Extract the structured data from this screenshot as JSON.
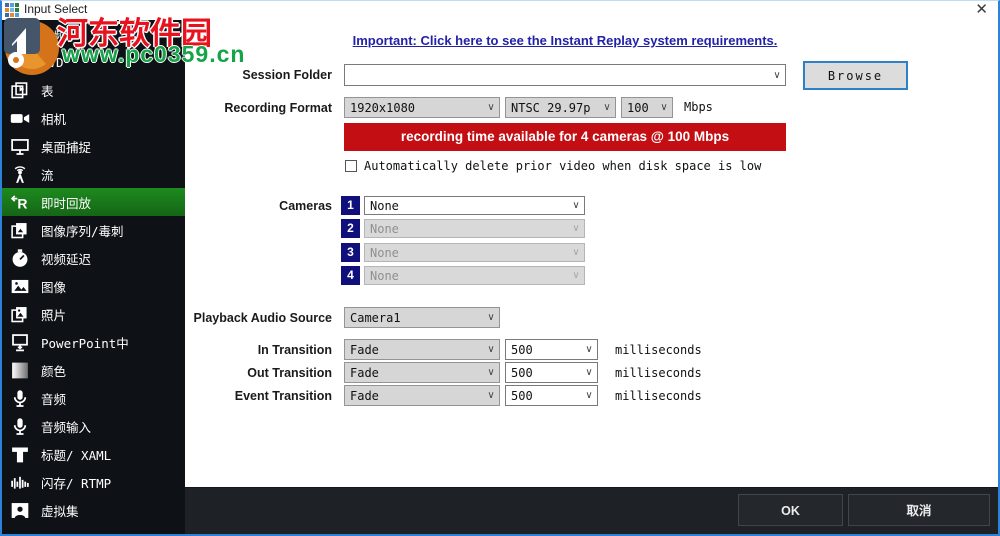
{
  "window": {
    "title": "Input Select",
    "close_icon": "✕"
  },
  "watermark": {
    "line1": "河东软件园",
    "line2": "www.pc0359.cn"
  },
  "sidebar": {
    "items": [
      {
        "label": "视频",
        "icon": "film",
        "selected": false
      },
      {
        "label": "DVD",
        "icon": "dvd",
        "selected": false
      },
      {
        "label": "表",
        "icon": "list",
        "selected": false
      },
      {
        "label": "相机",
        "icon": "camera",
        "selected": false
      },
      {
        "label": "桌面捕捉",
        "icon": "desktop",
        "selected": false
      },
      {
        "label": "流",
        "icon": "stream",
        "selected": false
      },
      {
        "label": "即时回放",
        "icon": "replay",
        "selected": true
      },
      {
        "label": "图像序列/毒刺",
        "icon": "sequence",
        "selected": false
      },
      {
        "label": "视频延迟",
        "icon": "delay",
        "selected": false
      },
      {
        "label": "图像",
        "icon": "image",
        "selected": false
      },
      {
        "label": "照片",
        "icon": "photos",
        "selected": false
      },
      {
        "label": "PowerPoint中",
        "icon": "powerpoint",
        "selected": false
      },
      {
        "label": "颜色",
        "icon": "color",
        "selected": false
      },
      {
        "label": "音频",
        "icon": "audio",
        "selected": false
      },
      {
        "label": "音频输入",
        "icon": "audio-input",
        "selected": false
      },
      {
        "label": "标题/ XAML",
        "icon": "title",
        "selected": false
      },
      {
        "label": "闪存/ RTMP",
        "icon": "flash",
        "selected": false
      },
      {
        "label": "虚拟集",
        "icon": "virtual-set",
        "selected": false
      }
    ]
  },
  "main": {
    "notice_link": "Important: Click here to see the Instant Replay system requirements.",
    "session_folder": {
      "label": "Session Folder",
      "value": "",
      "browse_label": "Browse"
    },
    "recording_format": {
      "label": "Recording Format",
      "resolution": "1920x1080",
      "standard": "NTSC 29.97p",
      "bitrate": "100",
      "bitrate_unit": "Mbps"
    },
    "banner": "recording time available for 4 cameras @ 100 Mbps",
    "auto_delete": {
      "label": "Automatically delete prior video when disk space is low",
      "checked": false
    },
    "cameras": {
      "label": "Cameras",
      "rows": [
        {
          "number": "1",
          "value": "None",
          "enabled": true
        },
        {
          "number": "2",
          "value": "None",
          "enabled": false
        },
        {
          "number": "3",
          "value": "None",
          "enabled": false
        },
        {
          "number": "4",
          "value": "None",
          "enabled": false
        }
      ]
    },
    "playback_audio_source": {
      "label": "Playback Audio Source",
      "value": "Camera1"
    },
    "transitions": [
      {
        "label": "In Transition",
        "effect": "Fade",
        "duration": "500",
        "unit": "milliseconds"
      },
      {
        "label": "Out Transition",
        "effect": "Fade",
        "duration": "500",
        "unit": "milliseconds"
      },
      {
        "label": "Event Transition",
        "effect": "Fade",
        "duration": "500",
        "unit": "milliseconds"
      }
    ]
  },
  "footer": {
    "ok_label": "OK",
    "cancel_label": "取消"
  },
  "colors": {
    "accent_green": "#1d8a1f",
    "banner_red": "#c30e13",
    "badge_navy": "#10107d",
    "link_blue": "#2222a8",
    "window_border": "#2c82d8",
    "sidebar_bg": "#0e1216",
    "footer_bg": "#1e2226"
  }
}
